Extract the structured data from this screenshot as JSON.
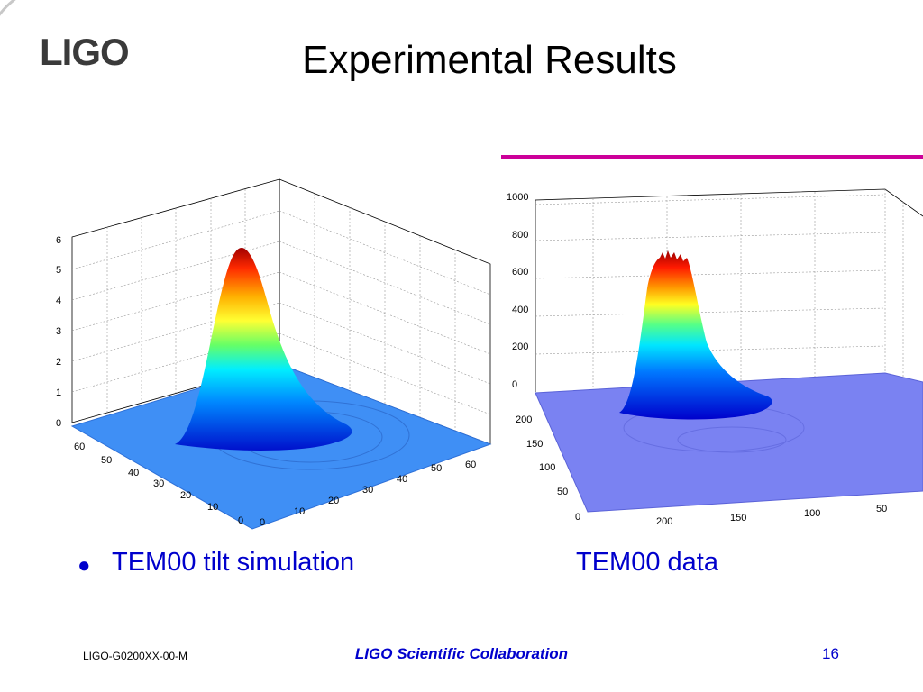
{
  "logo": {
    "text": "LIGO"
  },
  "slide": {
    "title": "Experimental Results"
  },
  "colors": {
    "accent_line": "#cc0099",
    "caption_text": "#0000cc",
    "surface_base_left": "#3f8ff5",
    "surface_base_right": "#7a82f2"
  },
  "plot_left": {
    "z_ticks": [
      "0",
      "1",
      "2",
      "3",
      "4",
      "5",
      "6"
    ],
    "x_ticks": [
      "60",
      "50",
      "40",
      "30",
      "20",
      "10",
      "0"
    ],
    "y_ticks": [
      "0",
      "10",
      "20",
      "30",
      "40",
      "50",
      "60"
    ]
  },
  "plot_right": {
    "z_ticks": [
      "0",
      "200",
      "400",
      "600",
      "800",
      "1000"
    ],
    "x_ticks": [
      "200",
      "150",
      "100",
      "50",
      "0"
    ],
    "y_ticks": [
      "0",
      "200",
      "150",
      "100",
      "50"
    ]
  },
  "captions": {
    "bullet": "●",
    "left": "TEM00 tilt simulation",
    "right": "TEM00 data"
  },
  "footer": {
    "doc_id": "LIGO-G0200XX-00-M",
    "center": "LIGO Scientific Collaboration",
    "page": "16"
  }
}
